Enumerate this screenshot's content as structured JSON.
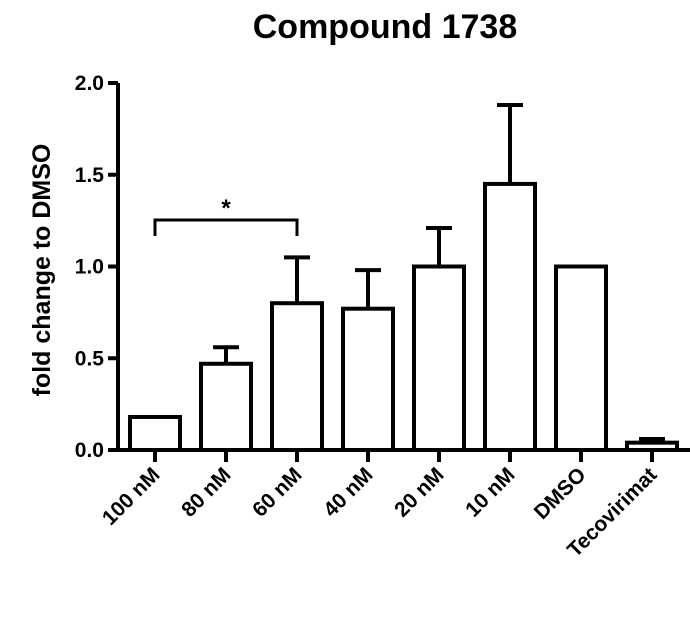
{
  "chart_data": {
    "type": "bar",
    "title": "Compound 1738",
    "xlabel": "",
    "ylabel": "fold change to DMSO",
    "ylim": [
      0,
      2.0
    ],
    "yticks": [
      "0.0",
      "0.5",
      "1.0",
      "1.5",
      "2.0"
    ],
    "categories": [
      "100 nM",
      "80 nM",
      "60 nM",
      "40 nM",
      "20 nM",
      "10 nM",
      "DMSO",
      "Tecovirimat"
    ],
    "values": [
      0.18,
      0.47,
      0.8,
      0.77,
      1.0,
      1.45,
      1.0,
      0.04
    ],
    "error_upper": [
      0.0,
      0.09,
      0.25,
      0.21,
      0.21,
      0.43,
      0.0,
      0.02
    ],
    "significance": [
      {
        "from": "100 nM",
        "to": "60 nM",
        "label": "*"
      }
    ],
    "grid": false,
    "legend": "none",
    "bar_fill": "#ffffff",
    "bar_stroke": "#000000"
  }
}
